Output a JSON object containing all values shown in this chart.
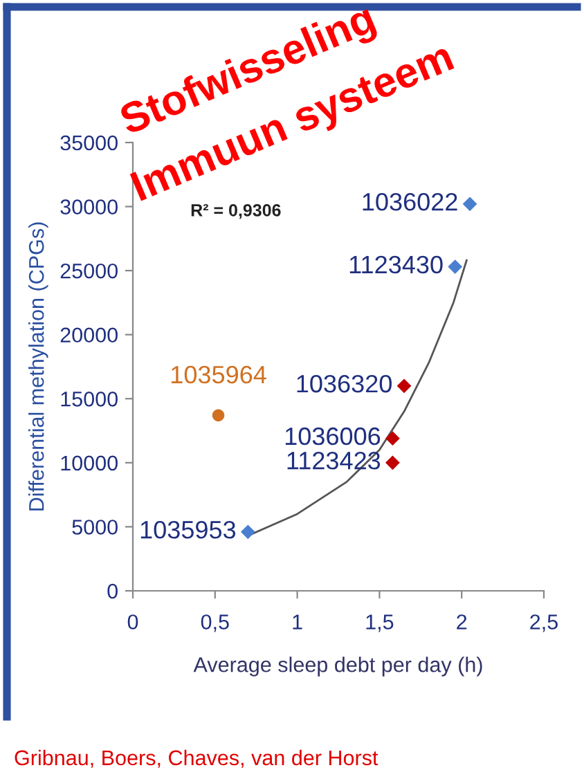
{
  "chart_data": {
    "type": "scatter",
    "xlabel": "Average sleep debt per day (h)",
    "ylabel": "Differential methylation (CPGs)",
    "xlim": [
      0,
      2.5
    ],
    "xticks": [
      0,
      {
        "value": 0.5,
        "label": "0,5"
      },
      1,
      {
        "value": 1.5,
        "label": "1,5"
      },
      2,
      {
        "value": 2.5,
        "label": "2,5"
      }
    ],
    "ylim": [
      0,
      35000
    ],
    "yticks": [
      0,
      5000,
      10000,
      15000,
      20000,
      25000,
      30000,
      35000
    ],
    "grid": false,
    "legend": false,
    "series": [
      {
        "type": "line",
        "color": "#555555",
        "marker": "none",
        "line_style": "solid",
        "x": [
          0.7,
          1.0,
          1.3,
          1.5,
          1.65,
          1.8,
          1.95,
          2.03
        ],
        "values": [
          4300,
          6000,
          8500,
          11000,
          14000,
          17800,
          22500,
          25800
        ]
      },
      {
        "color": "#4a7fd0",
        "marker": "diamond",
        "x": [
          0.7,
          1.96,
          2.05
        ],
        "values": [
          4600,
          25300,
          30200
        ]
      },
      {
        "color": "#c00000",
        "marker": "diamond",
        "x": [
          1.65,
          1.58,
          1.58
        ],
        "values": [
          16000,
          11900,
          10000
        ]
      },
      {
        "color": "#d07020",
        "marker": "circle",
        "x": [
          0.52
        ],
        "values": [
          13700
        ]
      }
    ],
    "annotations": [
      {
        "text": "1035953",
        "x": 0.7,
        "y": 4600
      },
      {
        "text": "1123430",
        "x": 1.96,
        "y": 25300
      },
      {
        "text": "1036022",
        "x": 2.05,
        "y": 30200
      },
      {
        "text": "1036320",
        "x": 1.65,
        "y": 16000
      },
      {
        "text": "1036006",
        "x": 1.58,
        "y": 11900
      },
      {
        "text": "1123423",
        "x": 1.58,
        "y": 10000
      },
      {
        "text": "1035964",
        "x": 0.52,
        "y": 13700
      },
      "R² = 0,9306",
      "Stofwisseling",
      "Immuun systeem",
      "Gribnau, Boers, Chaves, van der Horst"
    ]
  }
}
